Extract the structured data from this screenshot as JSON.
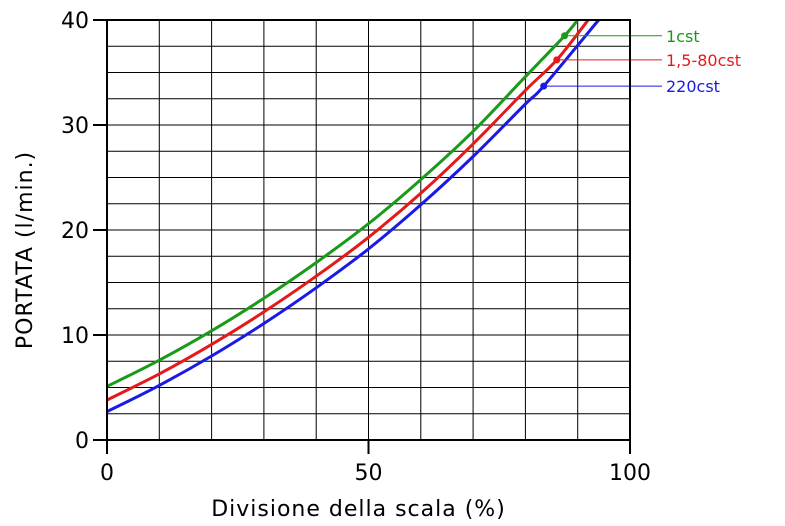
{
  "chart_data": {
    "type": "line",
    "title": "",
    "xlabel": "Divisione della scala (%)",
    "ylabel": "PORTATA (l/min.)",
    "xlim": [
      0,
      100
    ],
    "ylim": [
      0,
      40
    ],
    "x_ticks": [
      0,
      50,
      100
    ],
    "y_ticks": [
      0,
      10,
      20,
      30,
      40
    ],
    "grid": true,
    "x_minor_step": 10,
    "y_minor_step": 2.5,
    "legend_position": "right",
    "series": [
      {
        "name": "1cst",
        "color": "#1a9a1a",
        "x": [
          0,
          10,
          20,
          30,
          40,
          50,
          60,
          70,
          80,
          87.5,
          90
        ],
        "y": [
          5.1,
          7.6,
          10.4,
          13.5,
          16.9,
          20.6,
          24.8,
          29.4,
          34.6,
          38.5,
          40.0
        ],
        "marker_x": 87.5
      },
      {
        "name": "1,5-80cst",
        "color": "#e41a1a",
        "x": [
          0,
          10,
          20,
          30,
          40,
          50,
          60,
          70,
          80,
          86,
          92
        ],
        "y": [
          3.8,
          6.3,
          9.1,
          12.2,
          15.6,
          19.3,
          23.5,
          28.2,
          33.3,
          36.2,
          40.0
        ],
        "marker_x": 86
      },
      {
        "name": "220cst",
        "color": "#1a1ae6",
        "x": [
          0,
          10,
          20,
          30,
          40,
          50,
          60,
          70,
          80,
          83.5,
          94
        ],
        "y": [
          2.7,
          5.2,
          8.0,
          11.1,
          14.5,
          18.2,
          22.4,
          27.0,
          32.0,
          33.7,
          40.0
        ],
        "marker_x": 83.5
      }
    ]
  }
}
